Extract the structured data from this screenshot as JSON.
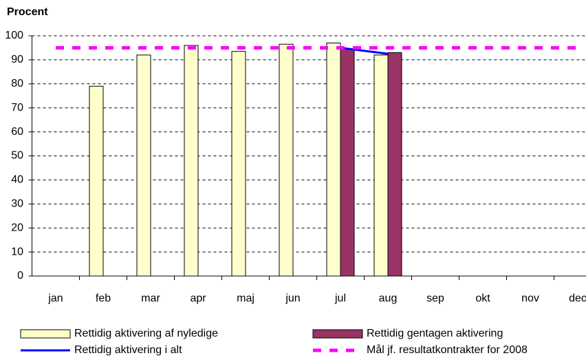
{
  "chart_data": {
    "type": "bar",
    "title": "Procent",
    "categories": [
      "jan",
      "feb",
      "mar",
      "apr",
      "maj",
      "jun",
      "jul",
      "aug",
      "sep",
      "okt",
      "nov",
      "dec"
    ],
    "series": [
      {
        "name": "Rettidig aktivering af nyledige",
        "type": "bar",
        "color": "#ffffcc",
        "values": [
          null,
          79,
          92,
          96,
          93.5,
          96.5,
          97,
          92,
          null,
          null,
          null,
          null
        ]
      },
      {
        "name": "Rettidig gentagen aktivering",
        "type": "bar",
        "color": "#993366",
        "values": [
          null,
          null,
          null,
          null,
          null,
          null,
          94.5,
          93,
          null,
          null,
          null,
          null
        ]
      },
      {
        "name": "Rettidig aktivering i alt",
        "type": "line",
        "color": "#0000ff",
        "values": [
          null,
          null,
          null,
          null,
          null,
          null,
          95,
          92.5,
          null,
          null,
          null,
          null
        ]
      },
      {
        "name": "Mål jf. resultatkontrakter for 2008",
        "type": "line",
        "dashed": true,
        "color": "#ff00ff",
        "values": [
          95,
          95,
          95,
          95,
          95,
          95,
          95,
          95,
          95,
          95,
          95,
          95
        ]
      }
    ],
    "ylim": [
      0,
      100
    ],
    "yticks": [
      0,
      10,
      20,
      30,
      40,
      50,
      60,
      70,
      80,
      90,
      100
    ],
    "grid": true,
    "legend": "bottom"
  }
}
